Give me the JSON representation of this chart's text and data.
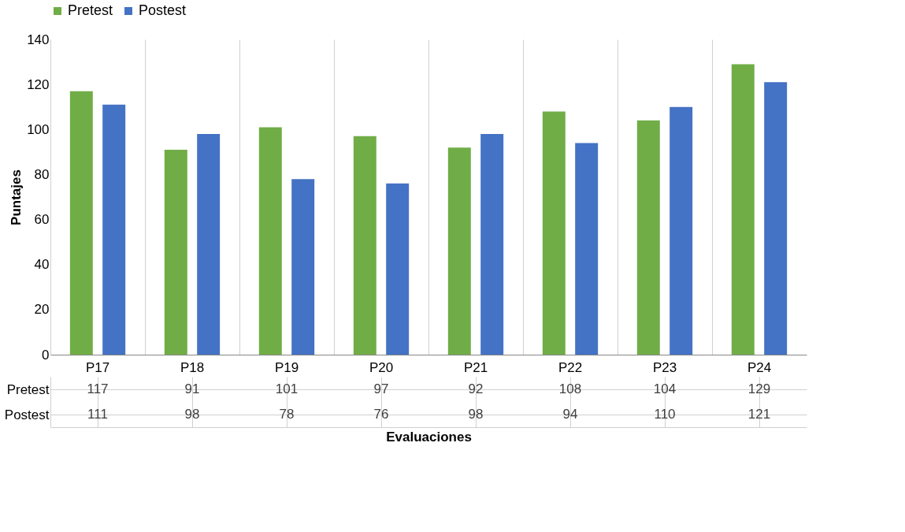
{
  "chart_data": {
    "type": "bar",
    "xlabel": "Evaluaciones",
    "ylabel": "Puntajes",
    "categories": [
      "P17",
      "P18",
      "P19",
      "P20",
      "P21",
      "P22",
      "P23",
      "P24"
    ],
    "series": [
      {
        "name": "Pretest",
        "color": "#70ad47",
        "values": [
          117,
          91,
          101,
          97,
          92,
          108,
          104,
          129
        ]
      },
      {
        "name": "Postest",
        "color": "#4472c4",
        "values": [
          111,
          98,
          78,
          76,
          98,
          94,
          110,
          121
        ]
      }
    ],
    "ylim": [
      0,
      140
    ],
    "yticks": [
      0,
      20,
      40,
      60,
      80,
      100,
      120,
      140
    ],
    "grid": false,
    "legend": "top",
    "data_labels": true
  }
}
